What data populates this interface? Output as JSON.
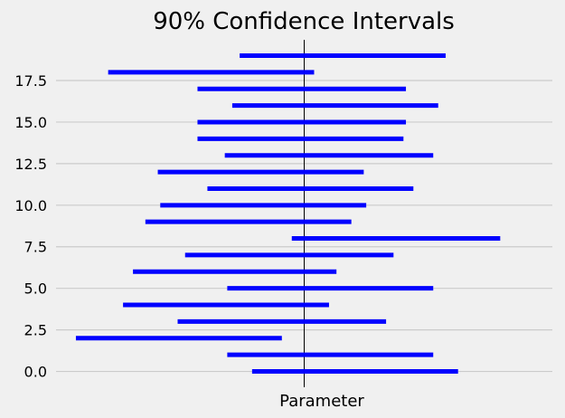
{
  "chart_data": {
    "type": "interval",
    "title": "90% Confidence Intervals",
    "xlabel": "Parameter",
    "ylabel": "",
    "ylim": [
      -0.95,
      19.95
    ],
    "xlim": [
      -1.0,
      1.0
    ],
    "yticks": [
      "0.0",
      "2.5",
      "5.0",
      "7.5",
      "10.0",
      "12.5",
      "15.0",
      "17.5"
    ],
    "grid": "horizontal",
    "reference_line_x": 0,
    "bar_color": "#0000ff",
    "intervals": [
      {
        "y": 0,
        "low": -0.21,
        "high": 0.62
      },
      {
        "y": 1,
        "low": -0.31,
        "high": 0.52
      },
      {
        "y": 2,
        "low": -0.92,
        "high": -0.09
      },
      {
        "y": 3,
        "low": -0.51,
        "high": 0.33
      },
      {
        "y": 4,
        "low": -0.73,
        "high": 0.1
      },
      {
        "y": 5,
        "low": -0.31,
        "high": 0.52
      },
      {
        "y": 6,
        "low": -0.69,
        "high": 0.13
      },
      {
        "y": 7,
        "low": -0.48,
        "high": 0.36
      },
      {
        "y": 8,
        "low": -0.05,
        "high": 0.79
      },
      {
        "y": 9,
        "low": -0.64,
        "high": 0.19
      },
      {
        "y": 10,
        "low": -0.58,
        "high": 0.25
      },
      {
        "y": 11,
        "low": -0.39,
        "high": 0.44
      },
      {
        "y": 12,
        "low": -0.59,
        "high": 0.24
      },
      {
        "y": 13,
        "low": -0.32,
        "high": 0.52
      },
      {
        "y": 14,
        "low": -0.43,
        "high": 0.4
      },
      {
        "y": 15,
        "low": -0.43,
        "high": 0.41
      },
      {
        "y": 16,
        "low": -0.29,
        "high": 0.54
      },
      {
        "y": 17,
        "low": -0.43,
        "high": 0.41
      },
      {
        "y": 18,
        "low": -0.79,
        "high": 0.04
      },
      {
        "y": 19,
        "low": -0.26,
        "high": 0.57
      }
    ]
  }
}
